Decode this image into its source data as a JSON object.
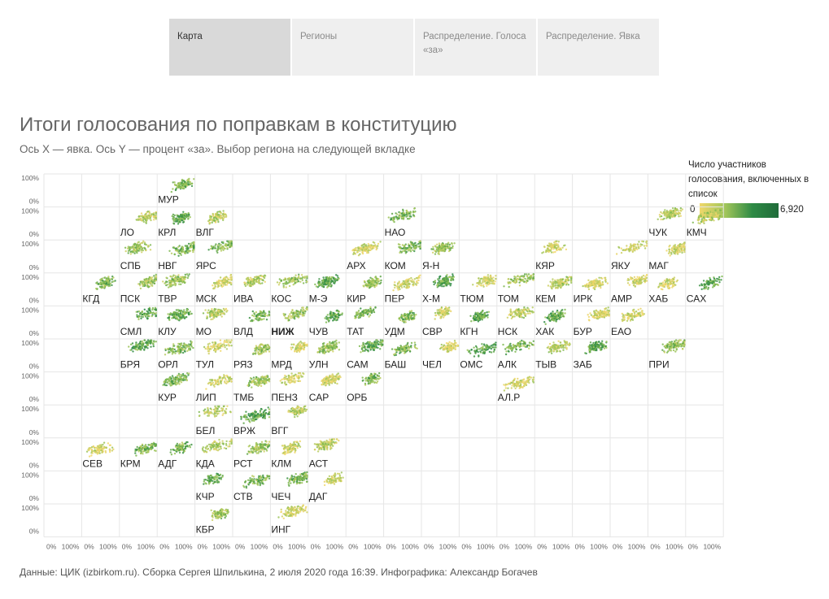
{
  "tabs": [
    {
      "label": "Карта",
      "active": true
    },
    {
      "label": "Регионы",
      "active": false
    },
    {
      "label": "Распределение. Голоса «за»",
      "active": false
    },
    {
      "label": "Распределение. Явка",
      "active": false
    }
  ],
  "title": "Итоги голосования по поправкам в конституцию",
  "subtitle": "Ось X — явка. Ось Y — процент «за». Выбор региона на следующей вкладке",
  "legend": {
    "title": "Число участников голосования, включенных в список",
    "min_label": "0",
    "max_label": "6,920",
    "colors": [
      "#f0d86b",
      "#9ec45a",
      "#2e8b45",
      "#1f6b3a"
    ]
  },
  "footer": "Данные: ЦИК (izbirkom.ru). Сборка Сергея Шпилькина, 2 июля 2020 года 16:39. Инфографика: Александр Богачев",
  "chart_data": {
    "type": "scatter",
    "layout": "tile-grid map, 18 columns × 11 rows",
    "x_axis": {
      "label": "явка",
      "ticks": [
        "0%",
        "100%"
      ]
    },
    "y_axis": {
      "label": "процент «за»",
      "ticks": [
        "100%",
        "0%"
      ]
    },
    "highlighted_region": "НИЖ",
    "regions": [
      {
        "code": "МУР",
        "col": 3,
        "row": 0
      },
      {
        "code": "ЛО",
        "col": 2,
        "row": 1
      },
      {
        "code": "КРЛ",
        "col": 3,
        "row": 1
      },
      {
        "code": "ВЛГ",
        "col": 4,
        "row": 1
      },
      {
        "code": "НАО",
        "col": 9,
        "row": 1
      },
      {
        "code": "ЧУК",
        "col": 16,
        "row": 1
      },
      {
        "code": "КМЧ",
        "col": 17,
        "row": 1
      },
      {
        "code": "СПБ",
        "col": 2,
        "row": 2
      },
      {
        "code": "НВГ",
        "col": 3,
        "row": 2
      },
      {
        "code": "ЯРС",
        "col": 4,
        "row": 2
      },
      {
        "code": "АРХ",
        "col": 8,
        "row": 2
      },
      {
        "code": "КОМ",
        "col": 9,
        "row": 2
      },
      {
        "code": "Я-Н",
        "col": 10,
        "row": 2
      },
      {
        "code": "КЯР",
        "col": 13,
        "row": 2
      },
      {
        "code": "ЯКУ",
        "col": 15,
        "row": 2
      },
      {
        "code": "МАГ",
        "col": 16,
        "row": 2
      },
      {
        "code": "КГД",
        "col": 1,
        "row": 3
      },
      {
        "code": "ПСК",
        "col": 2,
        "row": 3
      },
      {
        "code": "ТВР",
        "col": 3,
        "row": 3
      },
      {
        "code": "МСК",
        "col": 4,
        "row": 3
      },
      {
        "code": "ИВА",
        "col": 5,
        "row": 3
      },
      {
        "code": "КОС",
        "col": 6,
        "row": 3
      },
      {
        "code": "М-Э",
        "col": 7,
        "row": 3
      },
      {
        "code": "КИР",
        "col": 8,
        "row": 3
      },
      {
        "code": "ПЕР",
        "col": 9,
        "row": 3
      },
      {
        "code": "Х-М",
        "col": 10,
        "row": 3
      },
      {
        "code": "ТЮМ",
        "col": 11,
        "row": 3
      },
      {
        "code": "ТОМ",
        "col": 12,
        "row": 3
      },
      {
        "code": "КЕМ",
        "col": 13,
        "row": 3
      },
      {
        "code": "ИРК",
        "col": 14,
        "row": 3
      },
      {
        "code": "АМР",
        "col": 15,
        "row": 3
      },
      {
        "code": "ХАБ",
        "col": 16,
        "row": 3
      },
      {
        "code": "САХ",
        "col": 17,
        "row": 3
      },
      {
        "code": "СМЛ",
        "col": 2,
        "row": 4
      },
      {
        "code": "КЛУ",
        "col": 3,
        "row": 4
      },
      {
        "code": "МО",
        "col": 4,
        "row": 4
      },
      {
        "code": "ВЛД",
        "col": 5,
        "row": 4
      },
      {
        "code": "НИЖ",
        "col": 6,
        "row": 4
      },
      {
        "code": "ЧУВ",
        "col": 7,
        "row": 4
      },
      {
        "code": "ТАТ",
        "col": 8,
        "row": 4
      },
      {
        "code": "УДМ",
        "col": 9,
        "row": 4
      },
      {
        "code": "СВР",
        "col": 10,
        "row": 4
      },
      {
        "code": "КГН",
        "col": 11,
        "row": 4
      },
      {
        "code": "НСК",
        "col": 12,
        "row": 4
      },
      {
        "code": "ХАК",
        "col": 13,
        "row": 4
      },
      {
        "code": "БУР",
        "col": 14,
        "row": 4
      },
      {
        "code": "ЕАО",
        "col": 15,
        "row": 4
      },
      {
        "code": "БРЯ",
        "col": 2,
        "row": 5
      },
      {
        "code": "ОРЛ",
        "col": 3,
        "row": 5
      },
      {
        "code": "ТУЛ",
        "col": 4,
        "row": 5
      },
      {
        "code": "РЯЗ",
        "col": 5,
        "row": 5
      },
      {
        "code": "МРД",
        "col": 6,
        "row": 5
      },
      {
        "code": "УЛН",
        "col": 7,
        "row": 5
      },
      {
        "code": "САМ",
        "col": 8,
        "row": 5
      },
      {
        "code": "БАШ",
        "col": 9,
        "row": 5
      },
      {
        "code": "ЧЕЛ",
        "col": 10,
        "row": 5
      },
      {
        "code": "ОМС",
        "col": 11,
        "row": 5
      },
      {
        "code": "АЛК",
        "col": 12,
        "row": 5
      },
      {
        "code": "ТЫВ",
        "col": 13,
        "row": 5
      },
      {
        "code": "ЗАБ",
        "col": 14,
        "row": 5
      },
      {
        "code": "ПРИ",
        "col": 16,
        "row": 5
      },
      {
        "code": "КУР",
        "col": 3,
        "row": 6
      },
      {
        "code": "ЛИП",
        "col": 4,
        "row": 6
      },
      {
        "code": "ТМБ",
        "col": 5,
        "row": 6
      },
      {
        "code": "ПЕНЗ",
        "col": 6,
        "row": 6
      },
      {
        "code": "САР",
        "col": 7,
        "row": 6
      },
      {
        "code": "ОРБ",
        "col": 8,
        "row": 6
      },
      {
        "code": "АЛ.Р",
        "col": 12,
        "row": 6
      },
      {
        "code": "БЕЛ",
        "col": 4,
        "row": 7
      },
      {
        "code": "ВРЖ",
        "col": 5,
        "row": 7
      },
      {
        "code": "ВГГ",
        "col": 6,
        "row": 7
      },
      {
        "code": "СЕВ",
        "col": 1,
        "row": 8
      },
      {
        "code": "КРМ",
        "col": 2,
        "row": 8
      },
      {
        "code": "АДГ",
        "col": 3,
        "row": 8
      },
      {
        "code": "КДА",
        "col": 4,
        "row": 8
      },
      {
        "code": "РСТ",
        "col": 5,
        "row": 8
      },
      {
        "code": "КЛМ",
        "col": 6,
        "row": 8
      },
      {
        "code": "АСТ",
        "col": 7,
        "row": 8
      },
      {
        "code": "КЧР",
        "col": 4,
        "row": 9
      },
      {
        "code": "СТВ",
        "col": 5,
        "row": 9
      },
      {
        "code": "ЧЕЧ",
        "col": 6,
        "row": 9
      },
      {
        "code": "ДАГ",
        "col": 7,
        "row": 9
      },
      {
        "code": "КБР",
        "col": 4,
        "row": 10
      },
      {
        "code": "ИНГ",
        "col": 6,
        "row": 10
      }
    ]
  }
}
